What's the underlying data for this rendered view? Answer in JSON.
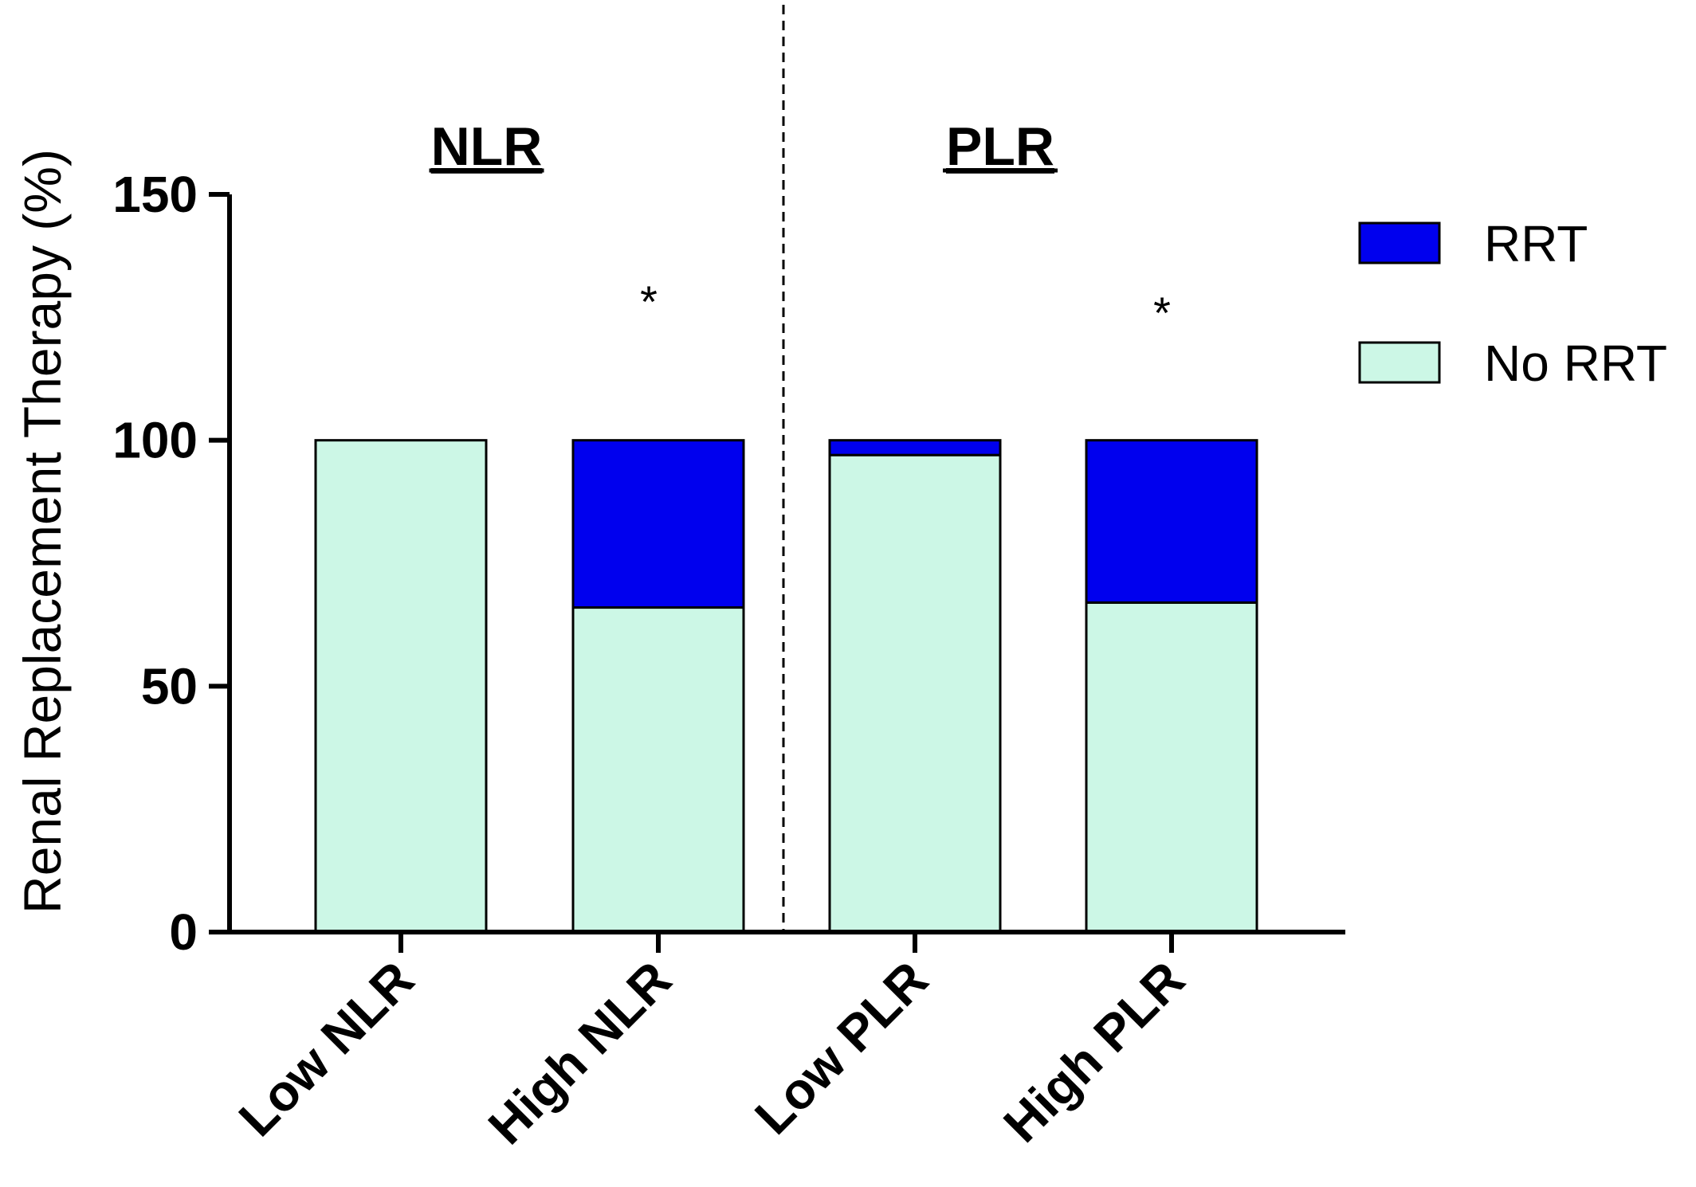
{
  "chart_data": {
    "type": "bar",
    "stacked": true,
    "categories": [
      "Low NLR",
      "High NLR",
      "Low PLR",
      "High PLR"
    ],
    "series": [
      {
        "name": "No RRT",
        "values": [
          100,
          66,
          97,
          67
        ],
        "color": "#ccf7e6"
      },
      {
        "name": "RRT",
        "values": [
          0,
          34,
          3,
          33
        ],
        "color": "#0000ee"
      }
    ],
    "ylabel": "Renal Replacement Therapy (%)",
    "ylim": [
      0,
      150
    ],
    "yticks": [
      0,
      50,
      100,
      150
    ],
    "group_titles": [
      {
        "label": "NLR",
        "categories": [
          "Low NLR",
          "High NLR"
        ]
      },
      {
        "label": "PLR",
        "categories": [
          "Low PLR",
          "High PLR"
        ]
      }
    ],
    "annotations": [
      {
        "category": "High NLR",
        "text": "*"
      },
      {
        "category": "High PLR",
        "text": "*"
      }
    ],
    "legend": {
      "position": "top-right",
      "entries": [
        "RRT",
        "No RRT"
      ]
    },
    "grid": false,
    "divider": "dashed vertical line between NLR and PLR groups"
  }
}
